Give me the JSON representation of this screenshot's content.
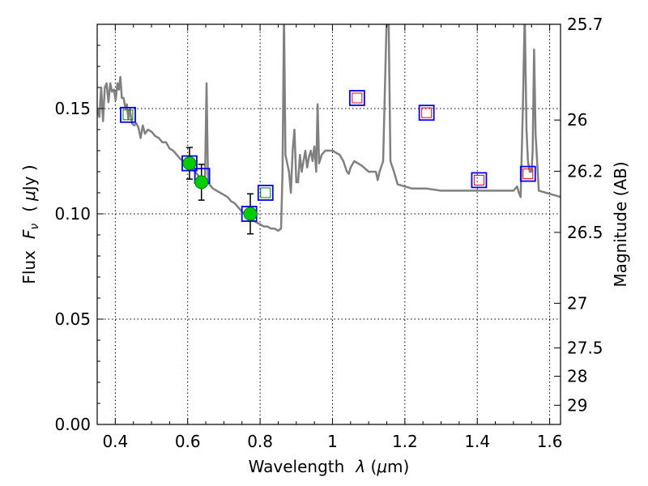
{
  "chart_data": {
    "type": "scatter",
    "xlabel": {
      "prefix": "Wavelength",
      "symbol": "λ",
      "unit_open": " (",
      "unit_mu": "μ",
      "unit_rest": "m)"
    },
    "ylabel": {
      "prefix": "Flux",
      "symbol": "F",
      "subscript": "ν",
      "unit_open": "(",
      "unit_mu": "μ",
      "unit_rest": "Jy )"
    },
    "ylabel_right": "Magnitude (AB)",
    "xlim": [
      0.35,
      1.63
    ],
    "ylim": [
      0.0,
      0.19
    ],
    "x_ticks": [
      {
        "value": 0.4,
        "label": "0.4"
      },
      {
        "value": 0.6,
        "label": "0.6"
      },
      {
        "value": 0.8,
        "label": "0.8"
      },
      {
        "value": 1.0,
        "label": "1"
      },
      {
        "value": 1.2,
        "label": "1.2"
      },
      {
        "value": 1.4,
        "label": "1.4"
      },
      {
        "value": 1.6,
        "label": "1.6"
      }
    ],
    "y_ticks": [
      {
        "value": 0.0,
        "label": "0.00"
      },
      {
        "value": 0.05,
        "label": "0.05"
      },
      {
        "value": 0.1,
        "label": "0.10"
      },
      {
        "value": 0.15,
        "label": "0.15"
      }
    ],
    "y_right_ticks": [
      {
        "value": 25.7,
        "label": "25.7"
      },
      {
        "value": 26.0,
        "label": "26"
      },
      {
        "value": 26.2,
        "label": "26.2"
      },
      {
        "value": 26.5,
        "label": "26.5"
      },
      {
        "value": 27.0,
        "label": "27"
      },
      {
        "value": 27.5,
        "label": "27.5"
      },
      {
        "value": 28.0,
        "label": "28"
      },
      {
        "value": 29.0,
        "label": "29"
      }
    ],
    "grid": true,
    "series": [
      {
        "kind": "line",
        "color": "#808080",
        "points": [
          [
            0.35,
            0.15
          ],
          [
            0.356,
            0.146
          ],
          [
            0.361,
            0.16
          ],
          [
            0.366,
            0.144
          ],
          [
            0.371,
            0.16
          ],
          [
            0.376,
            0.162
          ],
          [
            0.381,
            0.153
          ],
          [
            0.386,
            0.162
          ],
          [
            0.391,
            0.158
          ],
          [
            0.396,
            0.159
          ],
          [
            0.401,
            0.154
          ],
          [
            0.406,
            0.162
          ],
          [
            0.41,
            0.159
          ],
          [
            0.414,
            0.165
          ],
          [
            0.418,
            0.155
          ],
          [
            0.423,
            0.155
          ],
          [
            0.428,
            0.15
          ],
          [
            0.432,
            0.152
          ],
          [
            0.436,
            0.145
          ],
          [
            0.44,
            0.15
          ],
          [
            0.446,
            0.143
          ],
          [
            0.452,
            0.142
          ],
          [
            0.458,
            0.143
          ],
          [
            0.464,
            0.141
          ],
          [
            0.47,
            0.136
          ],
          [
            0.476,
            0.142
          ],
          [
            0.482,
            0.138
          ],
          [
            0.49,
            0.14
          ],
          [
            0.5,
            0.139
          ],
          [
            0.51,
            0.137
          ],
          [
            0.52,
            0.136
          ],
          [
            0.53,
            0.134
          ],
          [
            0.54,
            0.134
          ],
          [
            0.55,
            0.131
          ],
          [
            0.56,
            0.13
          ],
          [
            0.57,
            0.128
          ],
          [
            0.58,
            0.126
          ],
          [
            0.59,
            0.125
          ],
          [
            0.6,
            0.124
          ],
          [
            0.61,
            0.122
          ],
          [
            0.62,
            0.12
          ],
          [
            0.63,
            0.118
          ],
          [
            0.64,
            0.117
          ],
          [
            0.644,
            0.115
          ],
          [
            0.648,
            0.118
          ],
          [
            0.652,
            0.162
          ],
          [
            0.656,
            0.118
          ],
          [
            0.66,
            0.114
          ],
          [
            0.67,
            0.112
          ],
          [
            0.68,
            0.111
          ],
          [
            0.69,
            0.11
          ],
          [
            0.7,
            0.109
          ],
          [
            0.71,
            0.108
          ],
          [
            0.72,
            0.106
          ],
          [
            0.73,
            0.105
          ],
          [
            0.74,
            0.103
          ],
          [
            0.75,
            0.101
          ],
          [
            0.76,
            0.1
          ],
          [
            0.77,
            0.099
          ],
          [
            0.78,
            0.097
          ],
          [
            0.79,
            0.096
          ],
          [
            0.8,
            0.095
          ],
          [
            0.81,
            0.094
          ],
          [
            0.82,
            0.094
          ],
          [
            0.83,
            0.093
          ],
          [
            0.84,
            0.093
          ],
          [
            0.85,
            0.092
          ],
          [
            0.858,
            0.093
          ],
          [
            0.862,
            0.12
          ],
          [
            0.866,
            0.195
          ],
          [
            0.87,
            0.128
          ],
          [
            0.875,
            0.124
          ],
          [
            0.88,
            0.12
          ],
          [
            0.885,
            0.11
          ],
          [
            0.89,
            0.13
          ],
          [
            0.895,
            0.14
          ],
          [
            0.9,
            0.115
          ],
          [
            0.905,
            0.115
          ],
          [
            0.91,
            0.128
          ],
          [
            0.915,
            0.12
          ],
          [
            0.92,
            0.125
          ],
          [
            0.925,
            0.13
          ],
          [
            0.93,
            0.122
          ],
          [
            0.935,
            0.127
          ],
          [
            0.94,
            0.13
          ],
          [
            0.945,
            0.125
          ],
          [
            0.95,
            0.132
          ],
          [
            0.955,
            0.12
          ],
          [
            0.959,
            0.152
          ],
          [
            0.963,
            0.124
          ],
          [
            0.97,
            0.128
          ],
          [
            0.98,
            0.13
          ],
          [
            1.0,
            0.13
          ],
          [
            1.02,
            0.128
          ],
          [
            1.03,
            0.125
          ],
          [
            1.04,
            0.12
          ],
          [
            1.045,
            0.119
          ],
          [
            1.05,
            0.122
          ],
          [
            1.06,
            0.125
          ],
          [
            1.08,
            0.123
          ],
          [
            1.1,
            0.12
          ],
          [
            1.12,
            0.12
          ],
          [
            1.125,
            0.116
          ],
          [
            1.13,
            0.12
          ],
          [
            1.14,
            0.125
          ],
          [
            1.15,
            0.195
          ],
          [
            1.155,
            0.195
          ],
          [
            1.16,
            0.125
          ],
          [
            1.17,
            0.12
          ],
          [
            1.18,
            0.114
          ],
          [
            1.2,
            0.113
          ],
          [
            1.22,
            0.112
          ],
          [
            1.26,
            0.112
          ],
          [
            1.3,
            0.111
          ],
          [
            1.34,
            0.111
          ],
          [
            1.38,
            0.111
          ],
          [
            1.42,
            0.111
          ],
          [
            1.46,
            0.111
          ],
          [
            1.5,
            0.111
          ],
          [
            1.51,
            0.113
          ],
          [
            1.515,
            0.11
          ],
          [
            1.52,
            0.108
          ],
          [
            1.526,
            0.15
          ],
          [
            1.531,
            0.195
          ],
          [
            1.536,
            0.14
          ],
          [
            1.54,
            0.125
          ],
          [
            1.545,
            0.12
          ],
          [
            1.55,
            0.12
          ],
          [
            1.553,
            0.13
          ],
          [
            1.557,
            0.178
          ],
          [
            1.561,
            0.138
          ],
          [
            1.57,
            0.111
          ],
          [
            1.59,
            0.11
          ],
          [
            1.61,
            0.109
          ],
          [
            1.63,
            0.108
          ]
        ]
      },
      {
        "kind": "model_box_blue",
        "color": "#0000ff",
        "points": [
          [
            0.435,
            0.147
          ],
          [
            0.605,
            0.124
          ],
          [
            0.64,
            0.118
          ],
          [
            0.77,
            0.1
          ],
          [
            0.815,
            0.11
          ],
          [
            1.068,
            0.155
          ],
          [
            1.26,
            0.148
          ],
          [
            1.405,
            0.116
          ],
          [
            1.54,
            0.119
          ]
        ]
      },
      {
        "kind": "model_box_red",
        "color": "#ff0000",
        "points": [
          [
            1.068,
            0.155
          ],
          [
            1.26,
            0.148
          ],
          [
            1.405,
            0.116
          ],
          [
            1.54,
            0.119
          ]
        ]
      },
      {
        "kind": "model_box_green",
        "color": "#008000",
        "points": [
          [
            0.435,
            0.147
          ],
          [
            0.815,
            0.11
          ]
        ]
      },
      {
        "kind": "observed",
        "color": "#00cc00",
        "points": [
          [
            0.605,
            0.124
          ],
          [
            0.638,
            0.115
          ],
          [
            0.773,
            0.1
          ]
        ],
        "yerr": [
          0.0075,
          0.0085,
          0.0095
        ]
      }
    ]
  }
}
